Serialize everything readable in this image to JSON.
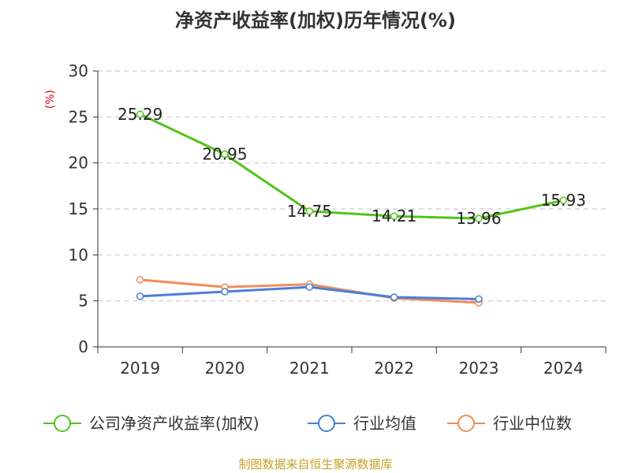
{
  "colors": {
    "roe": "#52c41a",
    "industry_avg": "#4a7fd6",
    "industry_median": "#f28c5b",
    "ylabel": "#d9001b",
    "source": "#c9a227",
    "grid": "#cccccc",
    "axis": "#333333"
  },
  "chart_data": {
    "type": "line",
    "title": "净资产收益率(加权)历年情况(%)",
    "xlabel": "",
    "ylabel": "(%)",
    "categories": [
      "2019",
      "2020",
      "2021",
      "2022",
      "2023",
      "2024"
    ],
    "ylim": [
      0,
      30
    ],
    "yticks": [
      0,
      5,
      10,
      15,
      20,
      25,
      30
    ],
    "grid": true,
    "legend_position": "bottom",
    "series": [
      {
        "key": "roe",
        "name": "公司净资产收益率(加权)",
        "values": [
          25.29,
          20.95,
          14.75,
          14.21,
          13.96,
          15.93
        ],
        "labels": [
          "25.29",
          "20.95",
          "14.75",
          "14.21",
          "13.96",
          "15.93"
        ]
      },
      {
        "key": "industry_avg",
        "name": "行业均值",
        "values": [
          5.5,
          6.0,
          6.5,
          5.4,
          5.2,
          null
        ]
      },
      {
        "key": "industry_median",
        "name": "行业中位数",
        "values": [
          7.3,
          6.5,
          6.8,
          5.3,
          4.8,
          null
        ]
      }
    ]
  },
  "source": "制图数据来自恒生聚源数据库"
}
